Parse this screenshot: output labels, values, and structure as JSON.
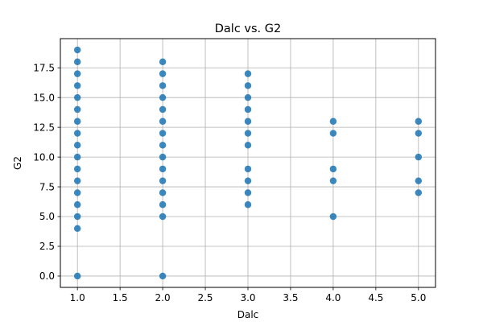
{
  "chart_data": {
    "type": "scatter",
    "title": "Dalc vs. G2",
    "xlabel": "Dalc",
    "ylabel": "G2",
    "xlim": [
      0.8,
      5.2
    ],
    "ylim": [
      -0.95,
      19.95
    ],
    "xticks": [
      1.0,
      1.5,
      2.0,
      2.5,
      3.0,
      3.5,
      4.0,
      4.5,
      5.0
    ],
    "xtick_labels": [
      "1.0",
      "1.5",
      "2.0",
      "2.5",
      "3.0",
      "3.5",
      "4.0",
      "4.5",
      "5.0"
    ],
    "yticks": [
      0.0,
      2.5,
      5.0,
      7.5,
      10.0,
      12.5,
      15.0,
      17.5
    ],
    "ytick_labels": [
      "0.0",
      "2.5",
      "5.0",
      "7.5",
      "10.0",
      "12.5",
      "15.0",
      "17.5"
    ],
    "grid": true,
    "marker_color": "#1f77b4",
    "points": [
      [
        1,
        0
      ],
      [
        1,
        4
      ],
      [
        1,
        5
      ],
      [
        1,
        6
      ],
      [
        1,
        7
      ],
      [
        1,
        8
      ],
      [
        1,
        9
      ],
      [
        1,
        10
      ],
      [
        1,
        11
      ],
      [
        1,
        12
      ],
      [
        1,
        13
      ],
      [
        1,
        14
      ],
      [
        1,
        15
      ],
      [
        1,
        16
      ],
      [
        1,
        17
      ],
      [
        1,
        18
      ],
      [
        1,
        19
      ],
      [
        2,
        0
      ],
      [
        2,
        5
      ],
      [
        2,
        6
      ],
      [
        2,
        7
      ],
      [
        2,
        8
      ],
      [
        2,
        9
      ],
      [
        2,
        10
      ],
      [
        2,
        11
      ],
      [
        2,
        12
      ],
      [
        2,
        13
      ],
      [
        2,
        14
      ],
      [
        2,
        15
      ],
      [
        2,
        16
      ],
      [
        2,
        17
      ],
      [
        2,
        18
      ],
      [
        3,
        6
      ],
      [
        3,
        7
      ],
      [
        3,
        8
      ],
      [
        3,
        9
      ],
      [
        3,
        11
      ],
      [
        3,
        12
      ],
      [
        3,
        13
      ],
      [
        3,
        14
      ],
      [
        3,
        15
      ],
      [
        3,
        16
      ],
      [
        3,
        17
      ],
      [
        4,
        5
      ],
      [
        4,
        8
      ],
      [
        4,
        9
      ],
      [
        4,
        12
      ],
      [
        4,
        13
      ],
      [
        5,
        7
      ],
      [
        5,
        8
      ],
      [
        5,
        10
      ],
      [
        5,
        12
      ],
      [
        5,
        13
      ]
    ]
  }
}
